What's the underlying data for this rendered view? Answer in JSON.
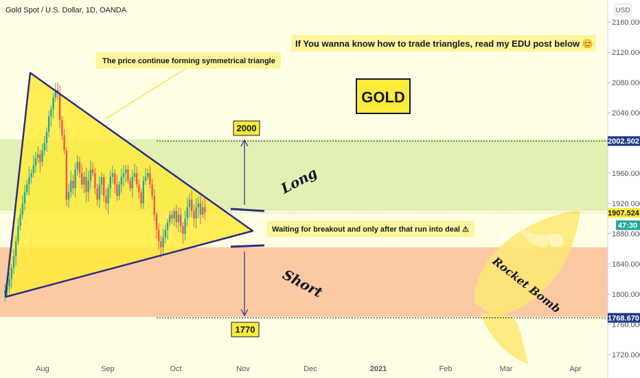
{
  "header": {
    "title": "Gold Spot / U.S. Dollar, 1D, OANDA"
  },
  "axis": {
    "currency": "USD"
  },
  "annotations": {
    "triangle_note": "The price continue forming symmetrical triangle",
    "edu_note": "If You wanna know how to trade triangles, read my EDU post below 😊",
    "gold_label": "GOLD",
    "target_up": "2000",
    "target_down": "1770",
    "long_label": "Long",
    "short_label": "Short",
    "wait_note": "Waiting for breakout and only after that run into deal ⚠",
    "rocket_label": "Rocket Bomb"
  },
  "price_tags": {
    "upper": "2002.502",
    "current": "1907.524",
    "countdown": "47:30",
    "lower": "1768.670"
  },
  "colors": {
    "long_zone": "#e2f0b4",
    "short_zone": "#fbc9a3",
    "triangle_fill": "#ffeb3b",
    "up_candle": "#26a69a",
    "down_candle": "#ef5350",
    "pattern_line": "#2e2a82",
    "note_bg": "#fff59d",
    "blue_tag": "#1e3a8a"
  },
  "chart_data": {
    "type": "candlestick",
    "title": "Gold Spot / U.S. Dollar, 1D, OANDA",
    "y_axis_unit": "USD",
    "y_ticks": [
      1720,
      1760,
      1800,
      1840,
      1880,
      1920,
      1960,
      2000,
      2040,
      2080,
      2120,
      2160
    ],
    "y_range": [
      1712,
      2175
    ],
    "x_ticks": [
      "Aug",
      "Sep",
      "Oct",
      "Nov",
      "Dec",
      "2021",
      "Feb",
      "Mar",
      "Apr"
    ],
    "candle_close_path": [
      1800,
      1805,
      1810,
      1820,
      1835,
      1850,
      1870,
      1890,
      1905,
      1920,
      1935,
      1945,
      1955,
      1960,
      1970,
      1980,
      1985,
      1975,
      1990,
      2000,
      2015,
      2035,
      2045,
      2060,
      2070,
      2065,
      2030,
      2010,
      1990,
      1925,
      1935,
      1950,
      1940,
      1965,
      1975,
      1960,
      1945,
      1955,
      1935,
      1950,
      1965,
      1960,
      1940,
      1925,
      1945,
      1955,
      1930,
      1920,
      1940,
      1955,
      1960,
      1945,
      1930,
      1945,
      1955,
      1960,
      1965,
      1950,
      1940,
      1955,
      1960,
      1945,
      1935,
      1920,
      1950,
      1955,
      1960,
      1945,
      1930,
      1905,
      1885,
      1870,
      1862,
      1875,
      1885,
      1895,
      1905,
      1900,
      1910,
      1895,
      1905,
      1890,
      1880,
      1900,
      1915,
      1925,
      1910,
      1900,
      1915,
      1920,
      1905,
      1915,
      1908
    ],
    "zones": {
      "long": {
        "from": 1910,
        "to": 2005
      },
      "short": {
        "from": 1770,
        "to": 1862
      }
    },
    "levels": {
      "upper": 2002.502,
      "current": 1907.524,
      "lower": 1768.67
    }
  }
}
